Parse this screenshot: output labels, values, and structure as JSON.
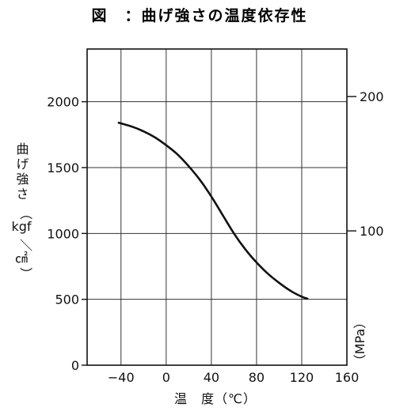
{
  "chart_data": {
    "type": "line",
    "title": "図　：曲げ強さの温度依存性",
    "xlabel": "温　度（℃）",
    "ylabel_left": {
      "quantity": "曲げ強さ",
      "unit_open": "（",
      "unit_numerator": "kgf",
      "unit_slash": "／",
      "unit_denominator": "㎠",
      "unit_close": "）"
    },
    "ylabel_right": "（MPa）",
    "xlim": [
      -70,
      160
    ],
    "ylim": [
      0,
      2400
    ],
    "y2lim_mpa": [
      0,
      235.4
    ],
    "x_ticks": [
      -40,
      0,
      40,
      80,
      120,
      160
    ],
    "x_tick_labels": [
      "−40",
      "0",
      "40",
      "80",
      "120",
      "160"
    ],
    "y_ticks": [
      0,
      500,
      1000,
      1500,
      2000
    ],
    "y_tick_labels": [
      "0",
      "500",
      "1000",
      "1500",
      "2000"
    ],
    "y2_ticks_mpa": [
      100,
      200
    ],
    "y2_tick_labels": [
      "100",
      "200"
    ],
    "grid": true,
    "series": [
      {
        "x": [
          -42,
          -30,
          -20,
          -10,
          0,
          10,
          20,
          30,
          40,
          50,
          60,
          70,
          80,
          90,
          100,
          110,
          120,
          125
        ],
        "y": [
          1840,
          1810,
          1775,
          1730,
          1670,
          1600,
          1510,
          1405,
          1280,
          1140,
          1000,
          880,
          780,
          695,
          625,
          565,
          520,
          505
        ],
        "color": "#111111"
      }
    ]
  }
}
